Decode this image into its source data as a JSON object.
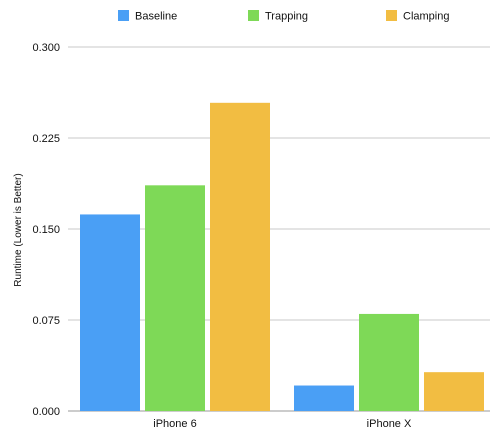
{
  "chart_data": {
    "type": "bar",
    "title": "",
    "xlabel": "",
    "ylabel": "Runtime (Lower is Better)",
    "categories": [
      "iPhone 6",
      "iPhone X"
    ],
    "series": [
      {
        "name": "Baseline",
        "values": [
          0.162,
          0.021
        ],
        "color": "#4a9ff5"
      },
      {
        "name": "Trapping",
        "values": [
          0.186,
          0.08
        ],
        "color": "#7ed957"
      },
      {
        "name": "Clamping",
        "values": [
          0.254,
          0.032
        ],
        "color": "#f2bd42"
      }
    ],
    "ylim": [
      0,
      0.3
    ],
    "yticks": [
      "0.000",
      "0.075",
      "0.150",
      "0.225",
      "0.300"
    ],
    "grid": true,
    "legend_position": "top"
  }
}
